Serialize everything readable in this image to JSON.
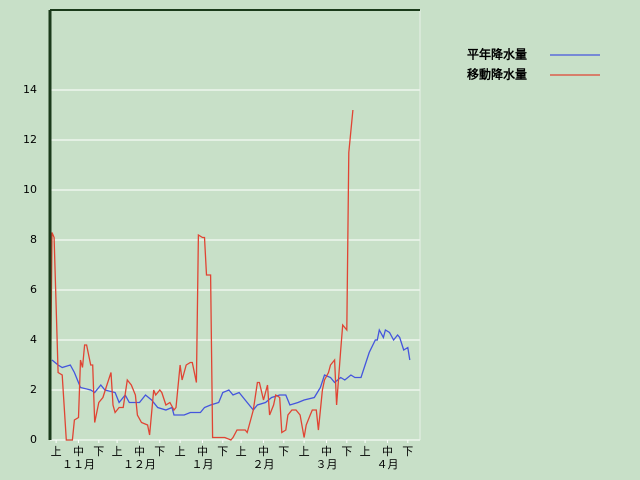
{
  "chart_data": {
    "type": "line",
    "xlim": [
      0,
      182
    ],
    "ylim": [
      0,
      17.2
    ],
    "yticks": [
      0,
      2,
      4,
      6,
      8,
      10,
      12,
      14
    ],
    "grid": true,
    "legend": "upper right",
    "xticks": [
      {
        "value": 3,
        "label": "上"
      },
      {
        "value": 14,
        "label": "中"
      },
      {
        "value": 24,
        "label": "下"
      },
      {
        "value": 33,
        "label": "上"
      },
      {
        "value": 44,
        "label": "中"
      },
      {
        "value": 54,
        "label": "下"
      },
      {
        "value": 64,
        "label": "上"
      },
      {
        "value": 75,
        "label": "中"
      },
      {
        "value": 85,
        "label": "下"
      },
      {
        "value": 94,
        "label": "上"
      },
      {
        "value": 105,
        "label": "中"
      },
      {
        "value": 115,
        "label": "下"
      },
      {
        "value": 125,
        "label": "上"
      },
      {
        "value": 136,
        "label": "中"
      },
      {
        "value": 146,
        "label": "下"
      },
      {
        "value": 155,
        "label": "上"
      },
      {
        "value": 166,
        "label": "中"
      },
      {
        "value": 176,
        "label": "下"
      }
    ],
    "month_ticks": [
      {
        "value": 14,
        "label": "１１月"
      },
      {
        "value": 44,
        "label": "１２月"
      },
      {
        "value": 75,
        "label": "１月"
      },
      {
        "value": 105,
        "label": "２月"
      },
      {
        "value": 136,
        "label": "３月"
      },
      {
        "value": 166,
        "label": "４月"
      }
    ],
    "series": [
      {
        "name": "平年降水量",
        "color": "#4455dd",
        "x": [
          1,
          4,
          6,
          10,
          12,
          15,
          20,
          22,
          25,
          27,
          32,
          34,
          37,
          39,
          44,
          47,
          50,
          53,
          57,
          60,
          61,
          66,
          69,
          74,
          76,
          79,
          83,
          85,
          88,
          90,
          93,
          97,
          100,
          102,
          106,
          109,
          113,
          116,
          118,
          122,
          125,
          130,
          133,
          135,
          138,
          140,
          143,
          145,
          148,
          150,
          153,
          155,
          157,
          160,
          161,
          162,
          164,
          165,
          167,
          169,
          171,
          172,
          174,
          176,
          177
        ],
        "values": [
          3.2,
          3.0,
          2.9,
          3.0,
          2.7,
          2.1,
          2.0,
          1.9,
          2.2,
          2.0,
          1.9,
          1.5,
          1.8,
          1.5,
          1.5,
          1.8,
          1.6,
          1.3,
          1.2,
          1.3,
          1.0,
          1.0,
          1.1,
          1.1,
          1.3,
          1.4,
          1.5,
          1.9,
          2.0,
          1.8,
          1.9,
          1.5,
          1.2,
          1.4,
          1.5,
          1.7,
          1.8,
          1.8,
          1.4,
          1.5,
          1.6,
          1.7,
          2.1,
          2.6,
          2.5,
          2.3,
          2.5,
          2.4,
          2.6,
          2.5,
          2.5,
          3.0,
          3.5,
          4.0,
          4.0,
          4.4,
          4.1,
          4.4,
          4.3,
          4.0,
          4.2,
          4.1,
          3.6,
          3.7,
          3.2
        ]
      },
      {
        "name": "移動降水量",
        "color": "#e04433",
        "x": [
          0,
          1,
          2,
          4,
          6,
          8,
          11,
          12,
          14,
          15,
          16,
          17,
          18,
          20,
          21,
          22,
          24,
          26,
          28,
          30,
          31,
          32,
          34,
          36,
          38,
          40,
          42,
          43,
          45,
          48,
          49,
          51,
          52,
          54,
          55,
          57,
          59,
          61,
          62,
          64,
          65,
          67,
          69,
          70,
          72,
          73,
          75,
          76,
          77,
          79,
          80,
          84,
          86,
          89,
          90,
          92,
          93,
          96,
          97,
          99,
          100,
          102,
          103,
          105,
          106,
          107,
          108,
          110,
          111,
          113,
          114,
          116,
          117,
          119,
          121,
          123,
          125,
          126,
          128,
          129,
          131,
          132,
          134,
          135,
          137,
          138,
          140,
          141,
          143,
          144,
          146,
          147,
          149
        ],
        "values": [
          0,
          8.3,
          8.1,
          2.7,
          2.6,
          0,
          0,
          0.8,
          0.9,
          3.2,
          2.9,
          3.8,
          3.8,
          3.0,
          3.0,
          0.7,
          1.5,
          1.7,
          2.2,
          2.7,
          1.4,
          1.1,
          1.3,
          1.3,
          2.4,
          2.2,
          1.8,
          1.0,
          0.7,
          0.6,
          0.2,
          2.0,
          1.8,
          2.0,
          1.9,
          1.4,
          1.5,
          1.2,
          1.3,
          3.0,
          2.4,
          3.0,
          3.1,
          3.1,
          2.3,
          8.2,
          8.1,
          8.1,
          6.6,
          6.6,
          0.1,
          0.1,
          0.1,
          0.0,
          0.1,
          0.4,
          0.4,
          0.4,
          0.3,
          0.9,
          1.2,
          2.3,
          2.3,
          1.6,
          1.9,
          2.2,
          1.0,
          1.4,
          1.8,
          1.7,
          0.3,
          0.4,
          1.0,
          1.2,
          1.2,
          1.0,
          0.1,
          0.6,
          1.0,
          1.2,
          1.2,
          0.4,
          2.0,
          2.4,
          2.7,
          3.0,
          3.2,
          1.4,
          3.6,
          4.6,
          4.4,
          11.5,
          13.2
        ]
      }
    ]
  }
}
